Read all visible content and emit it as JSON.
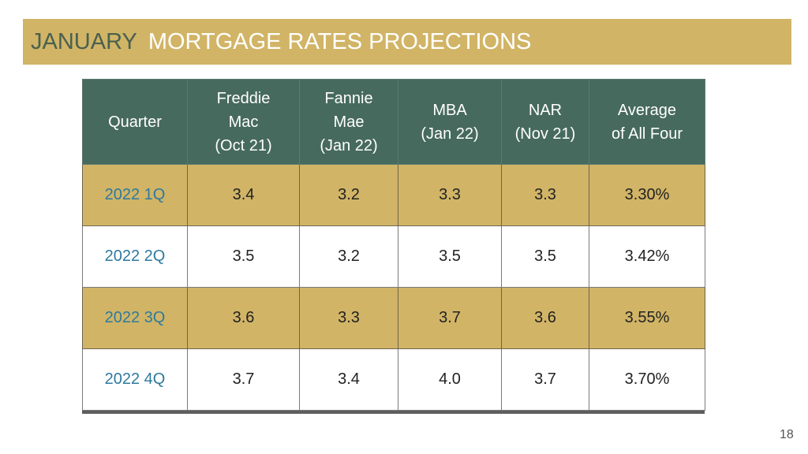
{
  "slide": {
    "title_month": "JANUARY",
    "title_rest": "MORTGAGE RATES PROJECTIONS",
    "page_number": "18",
    "colors": {
      "title_bar": "#d1b466",
      "header": "#476a5e",
      "gold_row": "#d1b466",
      "quarter_text": "#2d7a9e"
    }
  },
  "table": {
    "headers": [
      [
        "Quarter"
      ],
      [
        "Freddie",
        "Mac",
        "(Oct 21)"
      ],
      [
        "Fannie",
        "Mae",
        "(Jan 22)"
      ],
      [
        "MBA",
        "(Jan 22)"
      ],
      [
        "NAR",
        "(Nov 21)"
      ],
      [
        "Average",
        "of All Four"
      ]
    ],
    "rows": [
      [
        "2022 1Q",
        "3.4",
        "3.2",
        "3.3",
        "3.3",
        "3.30%"
      ],
      [
        "2022 2Q",
        "3.5",
        "3.2",
        "3.5",
        "3.5",
        "3.42%"
      ],
      [
        "2022 3Q",
        "3.6",
        "3.3",
        "3.7",
        "3.6",
        "3.55%"
      ],
      [
        "2022 4Q",
        "3.7",
        "3.4",
        "4.0",
        "3.7",
        "3.70%"
      ]
    ]
  }
}
